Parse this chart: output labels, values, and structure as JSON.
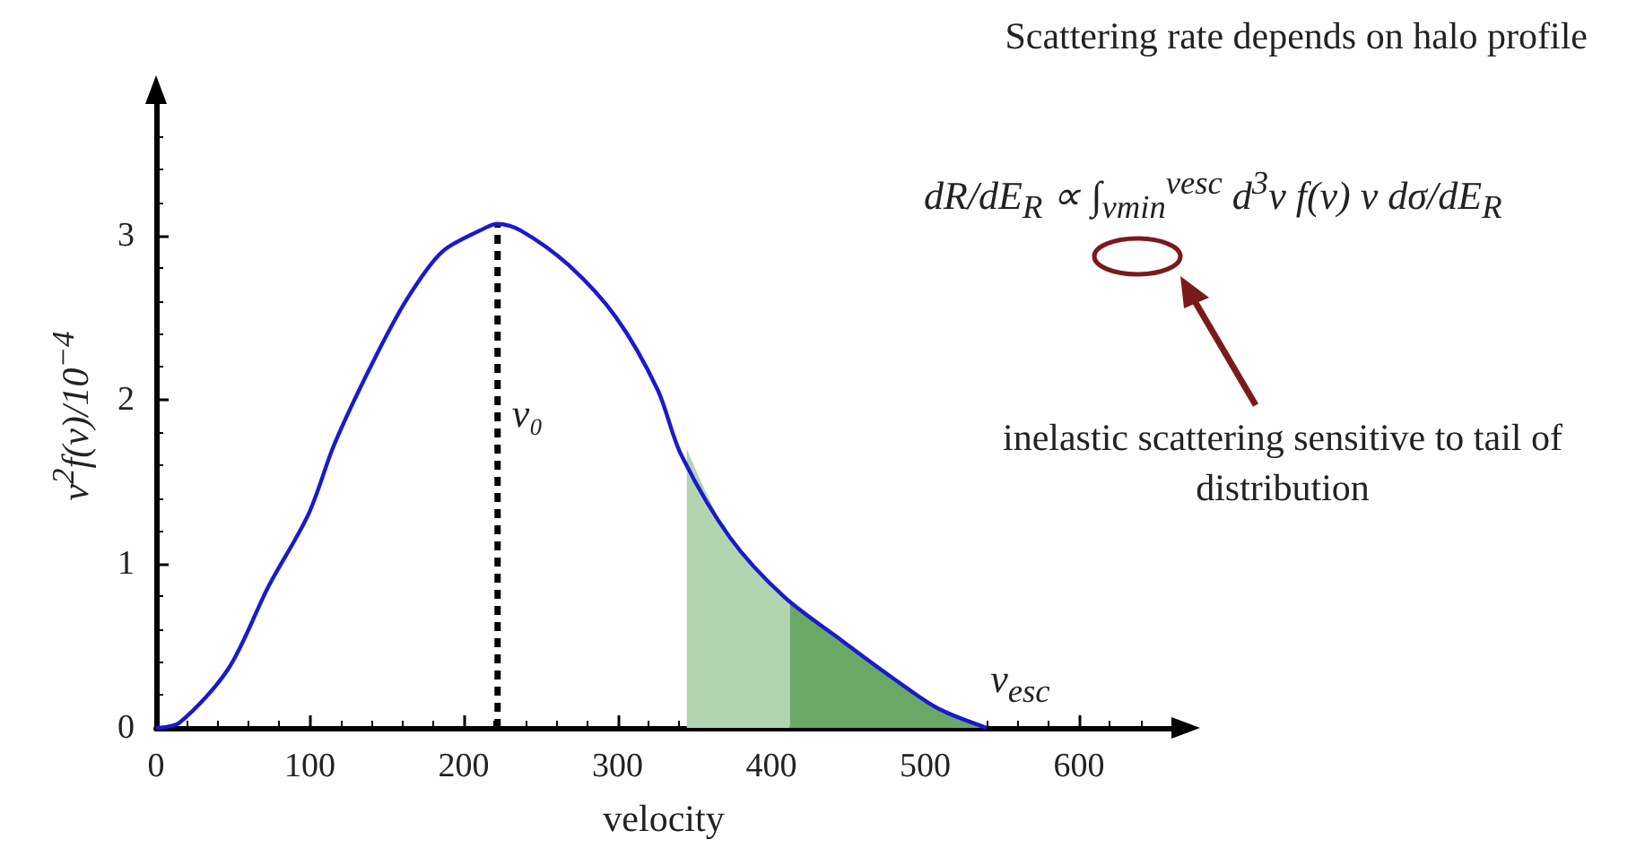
{
  "chart_data": {
    "type": "line",
    "title": "Scattering rate depends on halo profile",
    "xlabel": "velocity",
    "ylabel": "v$^{2}$f(v)/10$^{−4}$",
    "xlim": [
      0,
      660
    ],
    "xticks": [
      0,
      100,
      200,
      300,
      400,
      500,
      600
    ],
    "ylim": [
      0,
      3.8
    ],
    "yticks": [
      0,
      1,
      2,
      3
    ],
    "grid": false,
    "series": [
      {
        "color": "#1a1acc",
        "x": [
          0,
          15,
          47,
          73,
          99,
          116,
          140,
          163,
          186,
          215,
          222,
          237,
          268,
          299,
          326,
          341,
          373,
          408,
          446,
          478,
          508,
          540
        ],
        "values": [
          0,
          0.03,
          0.36,
          0.86,
          1.3,
          1.73,
          2.21,
          2.61,
          2.9,
          3.05,
          3.07,
          3.03,
          2.82,
          2.5,
          2.06,
          1.67,
          1.16,
          0.8,
          0.53,
          0.31,
          0.12,
          0
        ]
      },
      {
        "type": "area",
        "color": "#b3d4b0",
        "x": [
          345,
          373,
          412
        ],
        "values": [
          1.7,
          1.16,
          0.78
        ]
      },
      {
        "type": "area",
        "color": "#6aa866",
        "x": [
          412,
          446,
          478,
          508,
          540
        ],
        "values": [
          0.78,
          0.53,
          0.31,
          0.12,
          0
        ]
      }
    ],
    "ref_lines": [
      {
        "axis": "x",
        "value": 222,
        "label": "v₀",
        "line_style": "dashed",
        "color": "#000000"
      }
    ],
    "annotations": [
      {
        "text": "v$_{esc}$",
        "x": 540,
        "y": 0
      },
      "dR/dE$_{R}$ ∝ ∫$_{vmin}$$^{vesc}$ d$^{3}$v f(v) v dσ/dE$_{R}$",
      "inelastic scattering sensitive to tail of distribution"
    ]
  }
}
